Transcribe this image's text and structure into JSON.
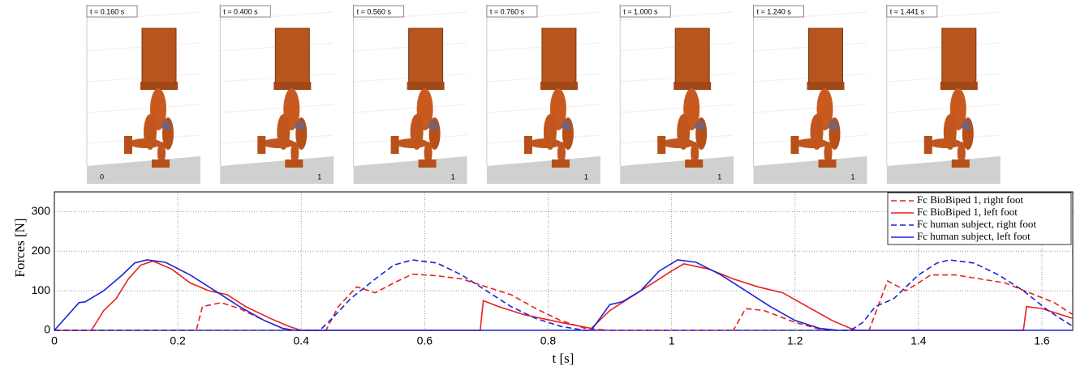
{
  "frames": [
    {
      "time": "t = 0.160 s",
      "axis": "0"
    },
    {
      "time": "t = 0.400 s",
      "axis": "1"
    },
    {
      "time": "t = 0.560 s",
      "axis": "1"
    },
    {
      "time": "t = 0.760 s",
      "axis": "1"
    },
    {
      "time": "t = 1.000 s",
      "axis": "1"
    },
    {
      "time": "t = 1.240 s",
      "axis": "1"
    },
    {
      "time": "t = 1.441 s",
      "axis": null
    }
  ],
  "chart_data": {
    "type": "line",
    "xlabel": "t [s]",
    "ylabel": "Forces [N]",
    "xlim": [
      0,
      1.65
    ],
    "ylim": [
      0,
      350
    ],
    "xticks": [
      0,
      0.2,
      0.4,
      0.6,
      0.8,
      1,
      1.2,
      1.4,
      1.6
    ],
    "yticks": [
      0,
      100,
      200,
      300
    ],
    "grid": true,
    "legend": "top-right",
    "series": [
      {
        "name": "Fc BioBiped 1, right foot",
        "color": "#e8211c",
        "dash": true,
        "x": [
          0,
          0.23,
          0.24,
          0.27,
          0.3,
          0.34,
          0.37,
          0.38,
          0.44,
          0.46,
          0.49,
          0.52,
          0.55,
          0.58,
          0.62,
          0.66,
          0.7,
          0.74,
          0.78,
          0.82,
          0.86,
          0.9,
          1.1,
          1.12,
          1.15,
          1.2,
          1.24,
          1.26,
          1.32,
          1.35,
          1.38,
          1.42,
          1.46,
          1.5,
          1.54,
          1.58,
          1.62,
          1.65
        ],
        "values": [
          0,
          0,
          60,
          70,
          55,
          25,
          5,
          0,
          0,
          60,
          110,
          95,
          120,
          142,
          138,
          130,
          110,
          90,
          55,
          25,
          5,
          0,
          0,
          55,
          50,
          20,
          3,
          0,
          0,
          125,
          100,
          140,
          140,
          130,
          120,
          95,
          70,
          40
        ]
      },
      {
        "name": "Fc BioBiped 1, left foot",
        "color": "#e8211c",
        "dash": false,
        "x": [
          0,
          0.06,
          0.08,
          0.1,
          0.12,
          0.14,
          0.16,
          0.19,
          0.22,
          0.25,
          0.28,
          0.31,
          0.35,
          0.38,
          0.4,
          0.69,
          0.695,
          0.72,
          0.76,
          0.82,
          0.87,
          0.9,
          0.93,
          0.97,
          1,
          1.02,
          1.06,
          1.1,
          1.14,
          1.18,
          1.22,
          1.26,
          1.29,
          1.3,
          1.57,
          1.575,
          1.6,
          1.65
        ],
        "values": [
          0,
          0,
          50,
          80,
          130,
          165,
          175,
          155,
          120,
          100,
          90,
          60,
          30,
          10,
          0,
          0,
          75,
          60,
          40,
          20,
          5,
          50,
          80,
          120,
          150,
          168,
          155,
          130,
          110,
          95,
          60,
          25,
          5,
          0,
          0,
          60,
          55,
          30
        ]
      },
      {
        "name": "Fc human subject, right foot",
        "color": "#1c24d8",
        "dash": true,
        "x": [
          0,
          0.43,
          0.45,
          0.48,
          0.52,
          0.55,
          0.58,
          0.62,
          0.66,
          0.7,
          0.74,
          0.78,
          0.82,
          0.86,
          1.29,
          1.31,
          1.33,
          1.36,
          1.4,
          1.43,
          1.45,
          1.49,
          1.53,
          1.57,
          1.61,
          1.65
        ],
        "values": [
          0,
          0,
          30,
          80,
          130,
          165,
          178,
          170,
          140,
          100,
          60,
          30,
          10,
          0,
          0,
          20,
          60,
          80,
          140,
          170,
          178,
          170,
          140,
          100,
          50,
          10
        ]
      },
      {
        "name": "Fc human subject, left foot",
        "color": "#1c24d8",
        "dash": false,
        "x": [
          0,
          0.04,
          0.05,
          0.08,
          0.11,
          0.13,
          0.15,
          0.18,
          0.22,
          0.26,
          0.3,
          0.34,
          0.37,
          0.39,
          0.87,
          0.9,
          0.92,
          0.95,
          0.98,
          1.01,
          1.04,
          1.08,
          1.12,
          1.16,
          1.2,
          1.24,
          1.27,
          1.65
        ],
        "values": [
          0,
          70,
          72,
          100,
          140,
          170,
          178,
          172,
          140,
          100,
          60,
          25,
          5,
          0,
          0,
          65,
          72,
          100,
          150,
          178,
          172,
          140,
          100,
          60,
          25,
          5,
          0,
          0
        ]
      }
    ]
  }
}
